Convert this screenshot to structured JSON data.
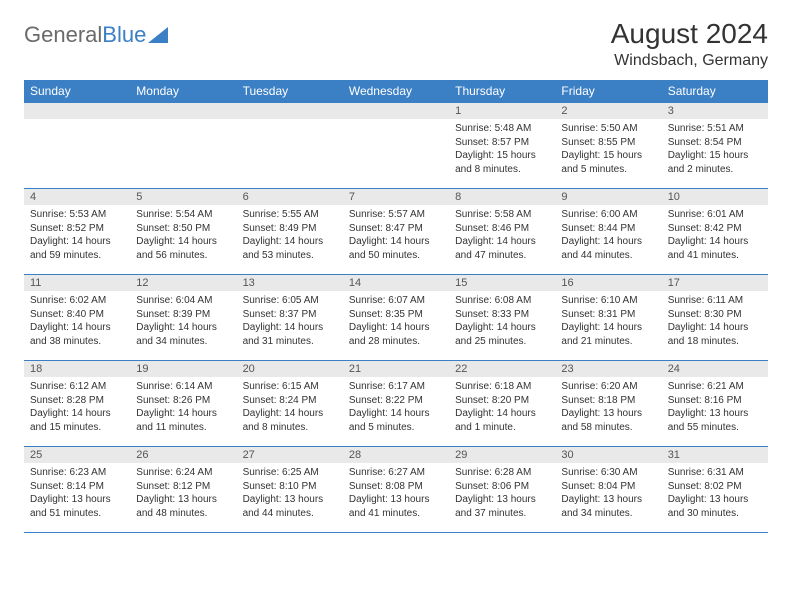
{
  "logo": {
    "text1": "General",
    "text2": "Blue"
  },
  "title": "August 2024",
  "location": "Windsbach, Germany",
  "colors": {
    "header_bg": "#3b7fc4",
    "header_text": "#ffffff",
    "daynum_bg": "#e9e9e9",
    "border": "#3b7fc4",
    "body_text": "#333333",
    "logo_gray": "#6a6a6a",
    "logo_blue": "#3b7fc4",
    "background": "#ffffff"
  },
  "fonts": {
    "title_size": 28,
    "location_size": 16,
    "header_size": 12,
    "daynum_size": 11,
    "content_size": 10
  },
  "day_headers": [
    "Sunday",
    "Monday",
    "Tuesday",
    "Wednesday",
    "Thursday",
    "Friday",
    "Saturday"
  ],
  "weeks": [
    [
      {
        "num": "",
        "sunrise": "",
        "sunset": "",
        "daylight": ""
      },
      {
        "num": "",
        "sunrise": "",
        "sunset": "",
        "daylight": ""
      },
      {
        "num": "",
        "sunrise": "",
        "sunset": "",
        "daylight": ""
      },
      {
        "num": "",
        "sunrise": "",
        "sunset": "",
        "daylight": ""
      },
      {
        "num": "1",
        "sunrise": "Sunrise: 5:48 AM",
        "sunset": "Sunset: 8:57 PM",
        "daylight": "Daylight: 15 hours and 8 minutes."
      },
      {
        "num": "2",
        "sunrise": "Sunrise: 5:50 AM",
        "sunset": "Sunset: 8:55 PM",
        "daylight": "Daylight: 15 hours and 5 minutes."
      },
      {
        "num": "3",
        "sunrise": "Sunrise: 5:51 AM",
        "sunset": "Sunset: 8:54 PM",
        "daylight": "Daylight: 15 hours and 2 minutes."
      }
    ],
    [
      {
        "num": "4",
        "sunrise": "Sunrise: 5:53 AM",
        "sunset": "Sunset: 8:52 PM",
        "daylight": "Daylight: 14 hours and 59 minutes."
      },
      {
        "num": "5",
        "sunrise": "Sunrise: 5:54 AM",
        "sunset": "Sunset: 8:50 PM",
        "daylight": "Daylight: 14 hours and 56 minutes."
      },
      {
        "num": "6",
        "sunrise": "Sunrise: 5:55 AM",
        "sunset": "Sunset: 8:49 PM",
        "daylight": "Daylight: 14 hours and 53 minutes."
      },
      {
        "num": "7",
        "sunrise": "Sunrise: 5:57 AM",
        "sunset": "Sunset: 8:47 PM",
        "daylight": "Daylight: 14 hours and 50 minutes."
      },
      {
        "num": "8",
        "sunrise": "Sunrise: 5:58 AM",
        "sunset": "Sunset: 8:46 PM",
        "daylight": "Daylight: 14 hours and 47 minutes."
      },
      {
        "num": "9",
        "sunrise": "Sunrise: 6:00 AM",
        "sunset": "Sunset: 8:44 PM",
        "daylight": "Daylight: 14 hours and 44 minutes."
      },
      {
        "num": "10",
        "sunrise": "Sunrise: 6:01 AM",
        "sunset": "Sunset: 8:42 PM",
        "daylight": "Daylight: 14 hours and 41 minutes."
      }
    ],
    [
      {
        "num": "11",
        "sunrise": "Sunrise: 6:02 AM",
        "sunset": "Sunset: 8:40 PM",
        "daylight": "Daylight: 14 hours and 38 minutes."
      },
      {
        "num": "12",
        "sunrise": "Sunrise: 6:04 AM",
        "sunset": "Sunset: 8:39 PM",
        "daylight": "Daylight: 14 hours and 34 minutes."
      },
      {
        "num": "13",
        "sunrise": "Sunrise: 6:05 AM",
        "sunset": "Sunset: 8:37 PM",
        "daylight": "Daylight: 14 hours and 31 minutes."
      },
      {
        "num": "14",
        "sunrise": "Sunrise: 6:07 AM",
        "sunset": "Sunset: 8:35 PM",
        "daylight": "Daylight: 14 hours and 28 minutes."
      },
      {
        "num": "15",
        "sunrise": "Sunrise: 6:08 AM",
        "sunset": "Sunset: 8:33 PM",
        "daylight": "Daylight: 14 hours and 25 minutes."
      },
      {
        "num": "16",
        "sunrise": "Sunrise: 6:10 AM",
        "sunset": "Sunset: 8:31 PM",
        "daylight": "Daylight: 14 hours and 21 minutes."
      },
      {
        "num": "17",
        "sunrise": "Sunrise: 6:11 AM",
        "sunset": "Sunset: 8:30 PM",
        "daylight": "Daylight: 14 hours and 18 minutes."
      }
    ],
    [
      {
        "num": "18",
        "sunrise": "Sunrise: 6:12 AM",
        "sunset": "Sunset: 8:28 PM",
        "daylight": "Daylight: 14 hours and 15 minutes."
      },
      {
        "num": "19",
        "sunrise": "Sunrise: 6:14 AM",
        "sunset": "Sunset: 8:26 PM",
        "daylight": "Daylight: 14 hours and 11 minutes."
      },
      {
        "num": "20",
        "sunrise": "Sunrise: 6:15 AM",
        "sunset": "Sunset: 8:24 PM",
        "daylight": "Daylight: 14 hours and 8 minutes."
      },
      {
        "num": "21",
        "sunrise": "Sunrise: 6:17 AM",
        "sunset": "Sunset: 8:22 PM",
        "daylight": "Daylight: 14 hours and 5 minutes."
      },
      {
        "num": "22",
        "sunrise": "Sunrise: 6:18 AM",
        "sunset": "Sunset: 8:20 PM",
        "daylight": "Daylight: 14 hours and 1 minute."
      },
      {
        "num": "23",
        "sunrise": "Sunrise: 6:20 AM",
        "sunset": "Sunset: 8:18 PM",
        "daylight": "Daylight: 13 hours and 58 minutes."
      },
      {
        "num": "24",
        "sunrise": "Sunrise: 6:21 AM",
        "sunset": "Sunset: 8:16 PM",
        "daylight": "Daylight: 13 hours and 55 minutes."
      }
    ],
    [
      {
        "num": "25",
        "sunrise": "Sunrise: 6:23 AM",
        "sunset": "Sunset: 8:14 PM",
        "daylight": "Daylight: 13 hours and 51 minutes."
      },
      {
        "num": "26",
        "sunrise": "Sunrise: 6:24 AM",
        "sunset": "Sunset: 8:12 PM",
        "daylight": "Daylight: 13 hours and 48 minutes."
      },
      {
        "num": "27",
        "sunrise": "Sunrise: 6:25 AM",
        "sunset": "Sunset: 8:10 PM",
        "daylight": "Daylight: 13 hours and 44 minutes."
      },
      {
        "num": "28",
        "sunrise": "Sunrise: 6:27 AM",
        "sunset": "Sunset: 8:08 PM",
        "daylight": "Daylight: 13 hours and 41 minutes."
      },
      {
        "num": "29",
        "sunrise": "Sunrise: 6:28 AM",
        "sunset": "Sunset: 8:06 PM",
        "daylight": "Daylight: 13 hours and 37 minutes."
      },
      {
        "num": "30",
        "sunrise": "Sunrise: 6:30 AM",
        "sunset": "Sunset: 8:04 PM",
        "daylight": "Daylight: 13 hours and 34 minutes."
      },
      {
        "num": "31",
        "sunrise": "Sunrise: 6:31 AM",
        "sunset": "Sunset: 8:02 PM",
        "daylight": "Daylight: 13 hours and 30 minutes."
      }
    ]
  ]
}
